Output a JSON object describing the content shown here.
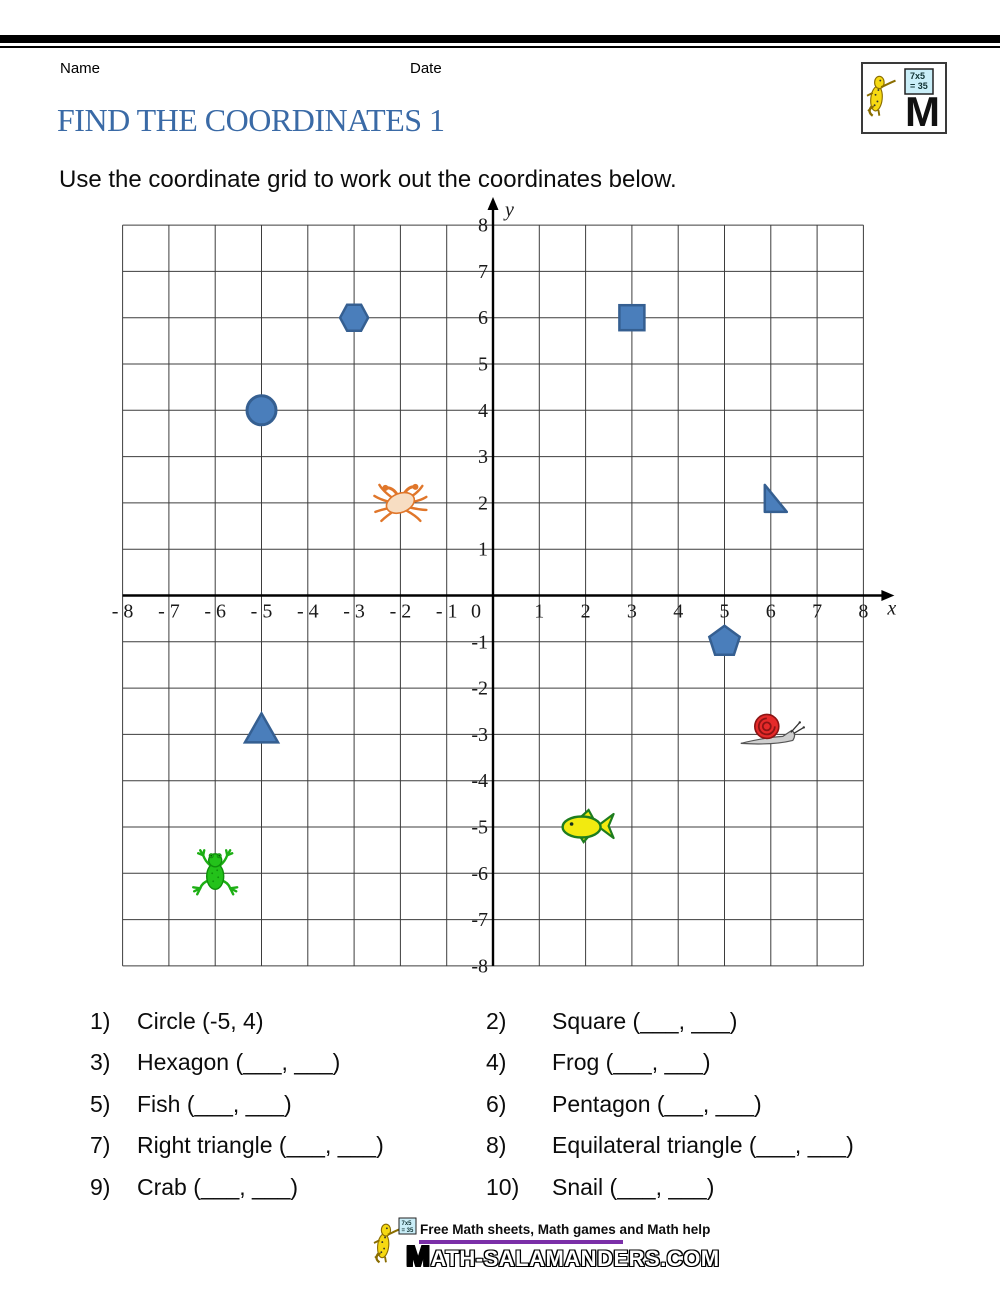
{
  "header": {
    "name_label": "Name",
    "date_label": "Date"
  },
  "logo": {
    "board_line1": "7x5",
    "board_line2": "= 35",
    "letter": "M"
  },
  "title": "FIND THE COORDINATES 1",
  "instruction": "Use the coordinate grid to work out the coordinates below.",
  "chart_data": {
    "type": "scatter",
    "title": "Coordinate grid with pictures and shapes",
    "x_range": [
      -8,
      8
    ],
    "y_range": [
      -8,
      8
    ],
    "grid": true,
    "x_axis_label": "x",
    "y_axis_label": "y",
    "x_tick_labels": [
      "- 8",
      "- 7",
      "- 6",
      "- 5",
      "- 4",
      "- 3",
      "- 2",
      "- 1",
      "0",
      "1",
      "2",
      "3",
      "4",
      "5",
      "6",
      "7",
      "8"
    ],
    "y_tick_labels": [
      "-8",
      "-7",
      "-6",
      "-5",
      "-4",
      "-3",
      "-2",
      "-1",
      "",
      "1",
      "2",
      "3",
      "4",
      "5",
      "6",
      "7",
      "8"
    ],
    "shape_fill": "#4a7ebb",
    "shape_stroke": "#355f91",
    "points": [
      {
        "name": "circle",
        "kind": "circle",
        "x": -5,
        "y": 4
      },
      {
        "name": "hexagon",
        "kind": "hexagon",
        "x": -3,
        "y": 6
      },
      {
        "name": "square",
        "kind": "square",
        "x": 3,
        "y": 6
      },
      {
        "name": "crab",
        "kind": "crab",
        "x": -2,
        "y": 2
      },
      {
        "name": "right-triangle",
        "kind": "right-triangle",
        "x": 6,
        "y": 2
      },
      {
        "name": "pentagon",
        "kind": "pentagon",
        "x": 5,
        "y": -1
      },
      {
        "name": "equilateral-triangle",
        "kind": "triangle",
        "x": -5,
        "y": -3
      },
      {
        "name": "snail",
        "kind": "snail",
        "x": 6,
        "y": -3
      },
      {
        "name": "fish",
        "kind": "fish",
        "x": 2,
        "y": -5
      },
      {
        "name": "frog",
        "kind": "frog",
        "x": -6,
        "y": -6
      }
    ]
  },
  "questions": {
    "items": [
      {
        "num": "1)",
        "text": "Circle (-5, 4)"
      },
      {
        "num": "2)",
        "text": "Square (___, ___)"
      },
      {
        "num": "3)",
        "text": "Hexagon (___, ___)"
      },
      {
        "num": "4)",
        "text": "Frog (___, ___)"
      },
      {
        "num": "5)",
        "text": "Fish (___, ___)"
      },
      {
        "num": "6)",
        "text": "Pentagon (___, ___)"
      },
      {
        "num": "7)",
        "text": "Right triangle (___, ___)"
      },
      {
        "num": "8)",
        "text": "Equilateral triangle (___, ___)"
      },
      {
        "num": "9)",
        "text": "Crab (___, ___)"
      },
      {
        "num": "10)",
        "text": "Snail (___, ___)"
      }
    ]
  },
  "footer": {
    "tagline": "Free Math sheets, Math games and Math help",
    "site": "MATH-SALAMANDERS.COM"
  },
  "colors": {
    "title": "#3a6aa6",
    "shape_fill": "#4a7ebb",
    "shape_stroke": "#355f91",
    "footer_rule": "#7b2fa8",
    "grid_line": "#3d3d3d",
    "axis": "#000000"
  }
}
